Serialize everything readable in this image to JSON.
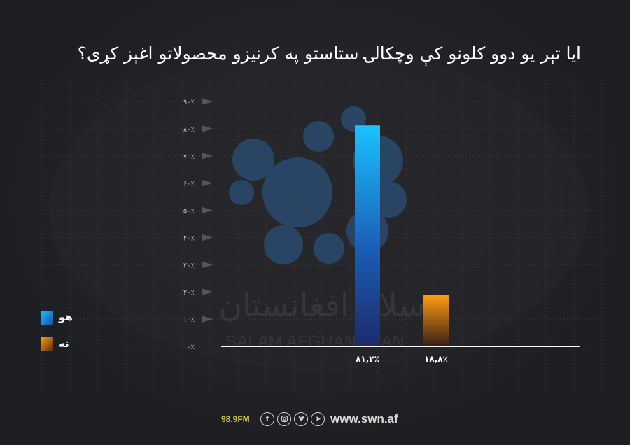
{
  "title": "ایا تېر یو دوو کلونو کې وچکالۍ ستاستو په کرنیزو محصولاتو اغېز کړی؟",
  "watermark": {
    "brand_fa": "سلام افغانستان",
    "brand_en": "SALAM AFGHANISTAN"
  },
  "footer": {
    "radio": "98.9FM",
    "social_icons": [
      "facebook-icon",
      "instagram-icon",
      "twitter-icon",
      "youtube-icon"
    ],
    "website": "www.swn.af"
  },
  "colors": {
    "yes": "#29a9f0",
    "no": "#f09a1a",
    "axis": "#ffffff",
    "tick_text": "#bdbdbd"
  },
  "chart_data": {
    "type": "bar",
    "title": "ایا تېر یو دوو کلونو کې وچکالۍ ستاستو په کرنیزو محصولاتو اغېز کړی؟",
    "categories": [
      "هو",
      "نه"
    ],
    "values": [
      81.2,
      18.8
    ],
    "value_labels": [
      "۸۱,۲٪",
      "۱۸,۸٪"
    ],
    "ylim": [
      0,
      90
    ],
    "yticks": [
      0,
      10,
      20,
      30,
      40,
      50,
      60,
      70,
      80,
      90
    ],
    "ytick_labels": [
      "۰٪",
      "۱۰٪",
      "۲۰٪",
      "۳۰٪",
      "۴۰٪",
      "۵۰٪",
      "۶۰٪",
      "۷۰٪",
      "۸۰٪",
      "۹۰٪"
    ],
    "grid": true,
    "legend": {
      "position": "left",
      "entries": [
        {
          "label": "هو",
          "color": "#29a9f0"
        },
        {
          "label": "نه",
          "color": "#f09a1a"
        }
      ]
    }
  }
}
